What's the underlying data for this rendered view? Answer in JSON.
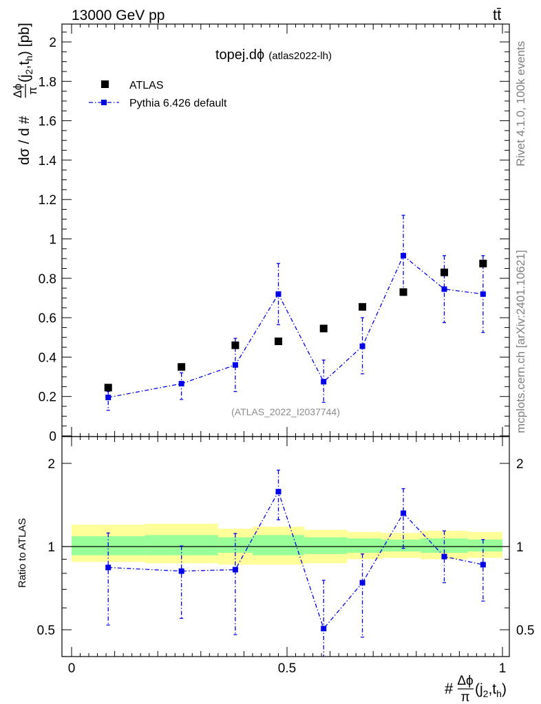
{
  "header": {
    "energy_label": "13000 GeV pp",
    "process_label": "tt̄"
  },
  "side_labels": {
    "rivet": "Rivet 4.1.0,  100k events",
    "mcplots": "mcplots.cern.ch [arXiv:2401.10621]"
  },
  "colors": {
    "data": "#000000",
    "mc": "#0000e6",
    "band_inner": "#99ff99",
    "band_outer": "#ffff99",
    "watermark": "#8c8c8c"
  },
  "chart_data": [
    {
      "type": "scatter",
      "title": "topej.dϕ",
      "subtitle": "(atlas2022-lh)",
      "ylabel_main": "dσ / d #",
      "ylabel_frac_num": "Δϕ",
      "ylabel_frac_den": "π",
      "ylabel_args": "(j",
      "ylabel_sub1": "2",
      "ylabel_mid": ",t",
      "ylabel_sub2": "h",
      "ylabel_unit": ") [pb]",
      "watermark": "(ATLAS_2022_I2037744)",
      "xlim": [
        0,
        1
      ],
      "ylim": [
        0,
        2.1
      ],
      "yticks": [
        "0",
        "0.2",
        "0.4",
        "0.6",
        "0.8",
        "1",
        "1.2",
        "1.4",
        "1.6",
        "1.8",
        "2"
      ],
      "x": [
        0.085,
        0.255,
        0.38,
        0.48,
        0.585,
        0.675,
        0.77,
        0.865,
        0.955
      ],
      "series": [
        {
          "name": "ATLAS",
          "values": [
            0.245,
            0.35,
            0.46,
            0.48,
            0.545,
            0.655,
            0.73,
            0.83,
            0.875
          ]
        },
        {
          "name": "Pythia 6.426 default",
          "values": [
            0.195,
            0.265,
            0.36,
            0.72,
            0.275,
            0.455,
            0.915,
            0.745,
            0.72
          ],
          "err_low": [
            0.065,
            0.08,
            0.135,
            0.155,
            0.105,
            0.14,
            0.18,
            0.17,
            0.195
          ],
          "err_high": [
            0.03,
            0.055,
            0.135,
            0.155,
            0.11,
            0.145,
            0.205,
            0.17,
            0.195
          ]
        }
      ]
    },
    {
      "type": "scatter",
      "ylabel": "Ratio to ATLAS",
      "xlabel_prefix": "#",
      "xlabel_frac_num": "Δϕ",
      "xlabel_frac_den": "π",
      "xlabel_args": "(j",
      "xlabel_sub1": "2",
      "xlabel_mid": ",t",
      "xlabel_sub2": "h",
      "xlabel_end": ")",
      "xlim": [
        0,
        1
      ],
      "ylim": [
        0.35,
        2.3
      ],
      "yticks": [
        "0.5",
        "1",
        "2"
      ],
      "xticks": [
        "0",
        "0.5",
        "1"
      ],
      "reference": 1,
      "bins": [
        0,
        0.17,
        0.34,
        0.42,
        0.54,
        0.64,
        0.72,
        0.81,
        0.92,
        1.0
      ],
      "band_inner": [
        [
          0.93,
          1.09
        ],
        [
          0.93,
          1.1
        ],
        [
          0.95,
          1.08
        ],
        [
          0.93,
          1.1
        ],
        [
          0.94,
          1.08
        ],
        [
          0.95,
          1.07
        ],
        [
          0.96,
          1.06
        ],
        [
          0.95,
          1.07
        ],
        [
          0.96,
          1.06
        ]
      ],
      "band_outer": [
        [
          0.88,
          1.2
        ],
        [
          0.87,
          1.21
        ],
        [
          0.86,
          1.16
        ],
        [
          0.86,
          1.18
        ],
        [
          0.87,
          1.15
        ],
        [
          0.9,
          1.13
        ],
        [
          0.91,
          1.12
        ],
        [
          0.9,
          1.14
        ],
        [
          0.91,
          1.13
        ]
      ],
      "series": [
        {
          "name": "Pythia 6.426 default",
          "values": [
            0.84,
            0.815,
            0.825,
            1.58,
            0.505,
            0.74,
            1.32,
            0.92,
            0.86
          ],
          "err_low": [
            0.32,
            0.265,
            0.345,
            0.33,
            0.135,
            0.27,
            0.335,
            0.18,
            0.225
          ],
          "err_high": [
            0.28,
            0.19,
            0.29,
            0.31,
            0.25,
            0.2,
            0.3,
            0.22,
            0.2
          ]
        }
      ]
    }
  ]
}
